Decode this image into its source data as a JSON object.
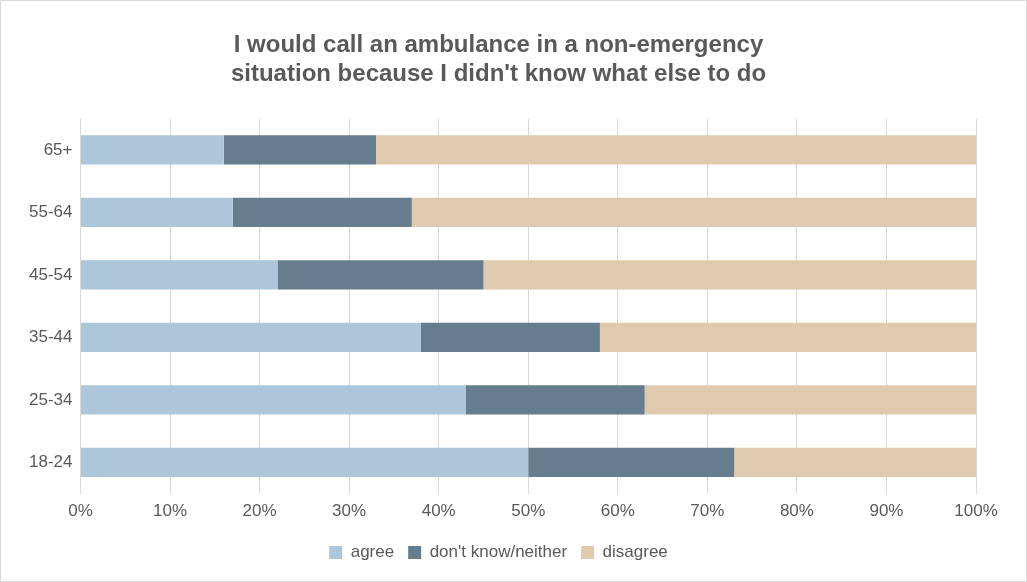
{
  "chart_data": {
    "type": "bar",
    "orientation": "horizontal",
    "stacked": true,
    "title": "I would call an ambulance in a non-emergency situation because I didn't know what else to do",
    "categories": [
      "65+",
      "55-64",
      "45-54",
      "35-44",
      "25-34",
      "18-24"
    ],
    "series": [
      {
        "name": "agree",
        "color": "#adc6da",
        "values": [
          16,
          17,
          22,
          38,
          43,
          50
        ]
      },
      {
        "name": "don't know/neither",
        "color": "#657d8c",
        "values": [
          17,
          20,
          23,
          20,
          20,
          23
        ]
      },
      {
        "name": "disagree",
        "color": "#dfcaad",
        "values": [
          67,
          63,
          55,
          42,
          37,
          27
        ]
      }
    ],
    "xlim": [
      0,
      100
    ],
    "xticks": [
      {
        "value": 0,
        "label": "0%"
      },
      {
        "value": 10,
        "label": "10%"
      },
      {
        "value": 20,
        "label": "20%"
      },
      {
        "value": 30,
        "label": "30%"
      },
      {
        "value": 40,
        "label": "40%"
      },
      {
        "value": 50,
        "label": "50%"
      },
      {
        "value": 60,
        "label": "60%"
      },
      {
        "value": 70,
        "label": "70%"
      },
      {
        "value": 80,
        "label": "80%"
      },
      {
        "value": 90,
        "label": "90%"
      },
      {
        "value": 100,
        "label": "100%"
      }
    ],
    "grid": "x",
    "legend": "bottom"
  }
}
